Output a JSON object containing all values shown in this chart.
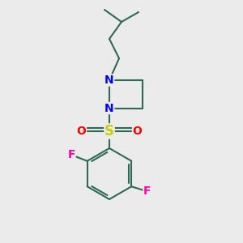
{
  "bg_color": "#ebebeb",
  "bond_color": "#2d6b52",
  "bond_width": 1.5,
  "N_color": "#0000ff",
  "S_color": "#cccc00",
  "O_color": "#ff0000",
  "F_color": "#ff00aa",
  "font_size": 9,
  "fig_size": [
    3.0,
    3.0
  ],
  "dpi": 100,
  "xlim": [
    0,
    10
  ],
  "ylim": [
    0,
    10
  ]
}
